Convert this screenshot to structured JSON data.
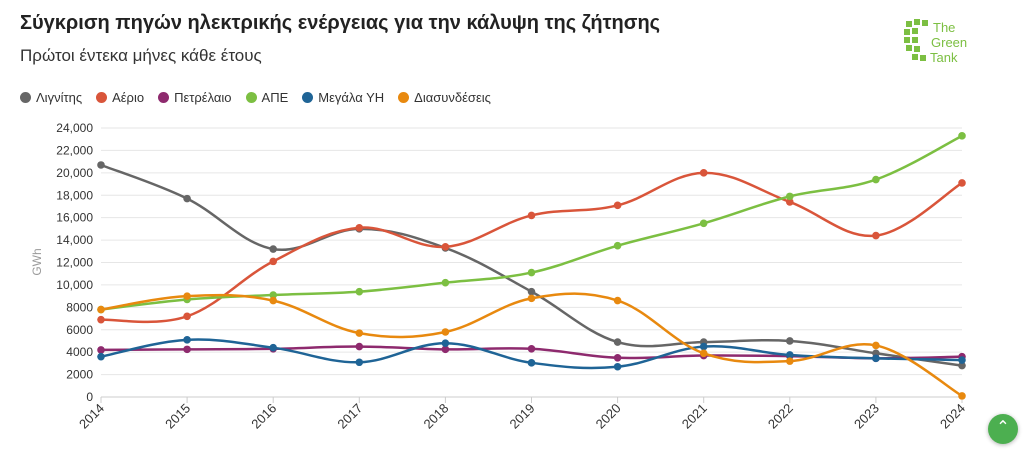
{
  "header": {
    "title": "Σύγκριση πηγών ηλεκτρικής ενέργειας για την κάλυψη της ζήτησης",
    "subtitle": "Πρώτοι έντεκα μήνες κάθε έτους"
  },
  "logo": {
    "line1": "The",
    "line2": "Green",
    "line3": "Tank"
  },
  "scroll_top_icon": "chevron-up-icon",
  "chart_data": {
    "type": "line",
    "title": "Σύγκριση πηγών ηλεκτρικής ενέργειας για την κάλυψη της ζήτησης",
    "subtitle": "Πρώτοι έντεκα μήνες κάθε έτους",
    "xlabel": "",
    "ylabel": "GWh",
    "ylim": [
      0,
      24000
    ],
    "yticks": [
      "0",
      "2000",
      "4000",
      "6000",
      "8000",
      "10,000",
      "12,000",
      "14,000",
      "16,000",
      "18,000",
      "20,000",
      "22,000",
      "24,000"
    ],
    "grid": true,
    "legend_position": "top-left",
    "x": [
      "2014",
      "2015",
      "2016",
      "2017",
      "2018",
      "2019",
      "2020",
      "2021",
      "2022",
      "2023",
      "2024"
    ],
    "series": [
      {
        "name": "Λιγνίτης",
        "color": "#666666",
        "values": [
          20700,
          17700,
          13200,
          15000,
          13300,
          9400,
          4900,
          4900,
          5000,
          3900,
          2800
        ]
      },
      {
        "name": "Αέριο",
        "color": "#d9553a",
        "values": [
          6900,
          7200,
          12100,
          15100,
          13400,
          16200,
          17100,
          20000,
          17400,
          14400,
          19100
        ]
      },
      {
        "name": "Πετρέλαιο",
        "color": "#8e2a6e",
        "values": [
          4200,
          4250,
          4300,
          4500,
          4250,
          4300,
          3500,
          3700,
          3650,
          3450,
          3600
        ]
      },
      {
        "name": "ΑΠΕ",
        "color": "#7cbf42",
        "values": [
          7800,
          8700,
          9100,
          9400,
          10200,
          11100,
          13500,
          15500,
          17900,
          19400,
          23300
        ]
      },
      {
        "name": "Μεγάλα ΥΗ",
        "color": "#1f6496",
        "values": [
          3600,
          5100,
          4400,
          3100,
          4800,
          3050,
          2700,
          4500,
          3750,
          3450,
          3300
        ]
      },
      {
        "name": "Διασυνδέσεις",
        "color": "#e8890f",
        "values": [
          7800,
          9000,
          8600,
          5700,
          5800,
          8800,
          8600,
          3900,
          3200,
          4600,
          100
        ]
      }
    ]
  }
}
